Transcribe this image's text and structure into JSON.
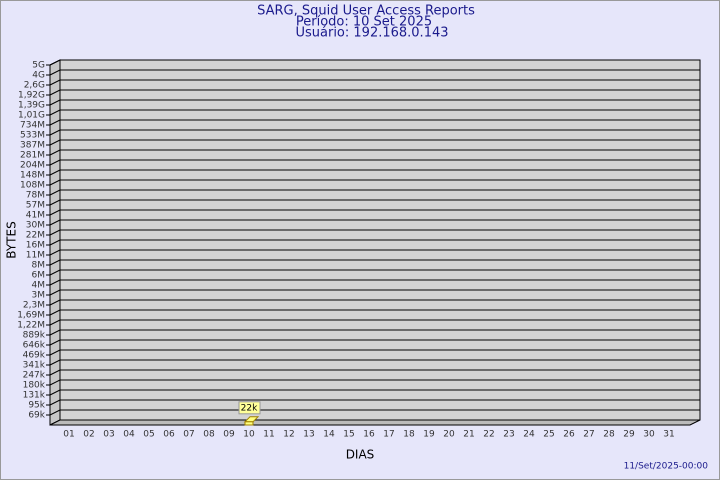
{
  "chart_data": {
    "type": "bar",
    "title": "SARG, Squid User Access Reports",
    "subtitle": [
      "Período: 10 Set 2025",
      "Usuário: 192.168.0.143"
    ],
    "x_label": "DIAS",
    "y_label": "BYTES",
    "footer": "11/Set/2025-00:00",
    "categories": [
      "01",
      "02",
      "03",
      "04",
      "05",
      "06",
      "07",
      "08",
      "09",
      "10",
      "11",
      "12",
      "13",
      "14",
      "15",
      "16",
      "17",
      "18",
      "19",
      "20",
      "21",
      "22",
      "23",
      "24",
      "25",
      "26",
      "27",
      "28",
      "29",
      "30",
      "31"
    ],
    "values": [
      null,
      null,
      null,
      null,
      null,
      null,
      null,
      null,
      null,
      22000,
      null,
      null,
      null,
      null,
      null,
      null,
      null,
      null,
      null,
      null,
      null,
      null,
      null,
      null,
      null,
      null,
      null,
      null,
      null,
      null,
      null
    ],
    "value_labels": [
      null,
      null,
      null,
      null,
      null,
      null,
      null,
      null,
      null,
      "22k",
      null,
      null,
      null,
      null,
      null,
      null,
      null,
      null,
      null,
      null,
      null,
      null,
      null,
      null,
      null,
      null,
      null,
      null,
      null,
      null,
      null
    ],
    "color": "#ffff80",
    "ylim": [
      0,
      5000000000
    ],
    "yticks": [
      {
        "value": 69000,
        "label": "69k"
      },
      {
        "value": 95000,
        "label": "95k"
      },
      {
        "value": 131000,
        "label": "131k"
      },
      {
        "value": 180000,
        "label": "180k"
      },
      {
        "value": 247000,
        "label": "247k"
      },
      {
        "value": 341000,
        "label": "341k"
      },
      {
        "value": 469000,
        "label": "469k"
      },
      {
        "value": 646000,
        "label": "646k"
      },
      {
        "value": 889000,
        "label": "889k"
      },
      {
        "value": 1220000,
        "label": "1,22M"
      },
      {
        "value": 1690000,
        "label": "1,69M"
      },
      {
        "value": 2300000,
        "label": "2,3M"
      },
      {
        "value": 3000000,
        "label": "3M"
      },
      {
        "value": 4000000,
        "label": "4M"
      },
      {
        "value": 6000000,
        "label": "6M"
      },
      {
        "value": 8000000,
        "label": "8M"
      },
      {
        "value": 11000000,
        "label": "11M"
      },
      {
        "value": 16000000,
        "label": "16M"
      },
      {
        "value": 22000000,
        "label": "22M"
      },
      {
        "value": 30000000,
        "label": "30M"
      },
      {
        "value": 41000000,
        "label": "41M"
      },
      {
        "value": 57000000,
        "label": "57M"
      },
      {
        "value": 78000000,
        "label": "78M"
      },
      {
        "value": 108000000,
        "label": "108M"
      },
      {
        "value": 148000000,
        "label": "148M"
      },
      {
        "value": 204000000,
        "label": "204M"
      },
      {
        "value": 281000000,
        "label": "281M"
      },
      {
        "value": 387000000,
        "label": "387M"
      },
      {
        "value": 533000000,
        "label": "533M"
      },
      {
        "value": 734000000,
        "label": "734M"
      },
      {
        "value": 1010000000,
        "label": "1,01G"
      },
      {
        "value": 1390000000,
        "label": "1,39G"
      },
      {
        "value": 1920000000,
        "label": "1,92G"
      },
      {
        "value": 2600000000,
        "label": "2,6G"
      },
      {
        "value": 4000000000,
        "label": "4G"
      },
      {
        "value": 5000000000,
        "label": "5G"
      }
    ],
    "grid": true
  }
}
